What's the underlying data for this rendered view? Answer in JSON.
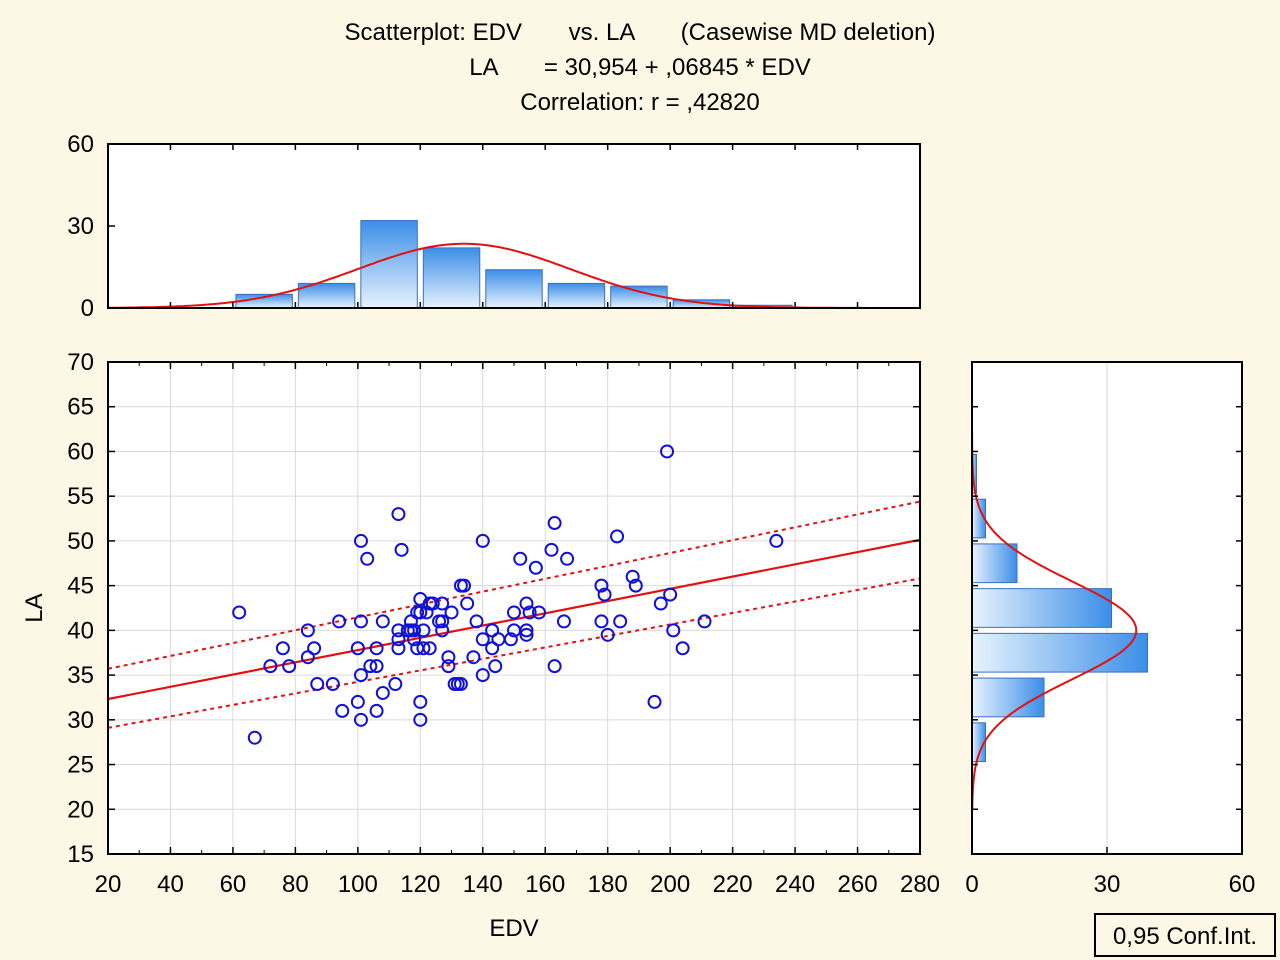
{
  "colors": {
    "background": "#fdf8e6",
    "plot_background": "#ffffff",
    "grid": "#d9d9d9",
    "points": "#1010d8",
    "fit_line": "#e31010",
    "bar_fill_light": "#e8f3fd",
    "bar_fill_dark": "#3b8ee8",
    "bar_stroke": "#3a6fc0"
  },
  "chart_data": {
    "type": "scatter",
    "title": {
      "line1": "Scatterplot: EDV       vs. LA       (Casewise MD deletion)",
      "line2": "LA       = 30,954 + ,06845 * EDV",
      "line3": "Correlation: r = ,42820"
    },
    "xlabel": "EDV",
    "ylabel": "LA",
    "xlim": [
      20,
      280
    ],
    "ylim": [
      15,
      70
    ],
    "x_ticks": [
      20,
      40,
      60,
      80,
      100,
      120,
      140,
      160,
      180,
      200,
      220,
      240,
      260,
      280
    ],
    "y_ticks": [
      15,
      20,
      25,
      30,
      35,
      40,
      45,
      50,
      55,
      60,
      65,
      70
    ],
    "grid": true,
    "regression": {
      "intercept": 30.954,
      "slope": 0.06845
    },
    "confidence_band": {
      "label": "0,95 Conf.Int.",
      "upper": [
        [
          20,
          35.7
        ],
        [
          280,
          54.4
        ]
      ],
      "lower": [
        [
          20,
          29.1
        ],
        [
          280,
          45.8
        ]
      ]
    },
    "points": [
      [
        62,
        42
      ],
      [
        67,
        28
      ],
      [
        72,
        36
      ],
      [
        76,
        38
      ],
      [
        78,
        36
      ],
      [
        84,
        37
      ],
      [
        84,
        40
      ],
      [
        86,
        38
      ],
      [
        87,
        34
      ],
      [
        92,
        34
      ],
      [
        94,
        41
      ],
      [
        95,
        31
      ],
      [
        100,
        38
      ],
      [
        100,
        32
      ],
      [
        101,
        30
      ],
      [
        101,
        35
      ],
      [
        101,
        41
      ],
      [
        101,
        50
      ],
      [
        103,
        48
      ],
      [
        104,
        36
      ],
      [
        106,
        31
      ],
      [
        106,
        36
      ],
      [
        106,
        38
      ],
      [
        108,
        33
      ],
      [
        108,
        41
      ],
      [
        112,
        34
      ],
      [
        113,
        53
      ],
      [
        113,
        40
      ],
      [
        113,
        39
      ],
      [
        113,
        38
      ],
      [
        114,
        49
      ],
      [
        116,
        40
      ],
      [
        117,
        40
      ],
      [
        117,
        41
      ],
      [
        118,
        39
      ],
      [
        118,
        40
      ],
      [
        119,
        42
      ],
      [
        119,
        38
      ],
      [
        120,
        30
      ],
      [
        120,
        32
      ],
      [
        120,
        42
      ],
      [
        120,
        43.5
      ],
      [
        121,
        40
      ],
      [
        121,
        38
      ],
      [
        122,
        42
      ],
      [
        123,
        38
      ],
      [
        123,
        43
      ],
      [
        124,
        43
      ],
      [
        126,
        41
      ],
      [
        127,
        40
      ],
      [
        127,
        41
      ],
      [
        127,
        43
      ],
      [
        129,
        36
      ],
      [
        129,
        37
      ],
      [
        130,
        42
      ],
      [
        131,
        34
      ],
      [
        132,
        34
      ],
      [
        133,
        45
      ],
      [
        133,
        34
      ],
      [
        134,
        45
      ],
      [
        135,
        43
      ],
      [
        137,
        37
      ],
      [
        138,
        41
      ],
      [
        140,
        35
      ],
      [
        140,
        39
      ],
      [
        140,
        50
      ],
      [
        143,
        40
      ],
      [
        143,
        38
      ],
      [
        144,
        36
      ],
      [
        145,
        39
      ],
      [
        149,
        39
      ],
      [
        150,
        42
      ],
      [
        150,
        40
      ],
      [
        152,
        48
      ],
      [
        154,
        43
      ],
      [
        154,
        40
      ],
      [
        154,
        39.5
      ],
      [
        155,
        42
      ],
      [
        157,
        47
      ],
      [
        158,
        42
      ],
      [
        162,
        49
      ],
      [
        163,
        36
      ],
      [
        163,
        52
      ],
      [
        166,
        41
      ],
      [
        167,
        48
      ],
      [
        178,
        41
      ],
      [
        178,
        45
      ],
      [
        179,
        44
      ],
      [
        180,
        39.5
      ],
      [
        183,
        50.5
      ],
      [
        184,
        41
      ],
      [
        188,
        46
      ],
      [
        189,
        45
      ],
      [
        195,
        32
      ],
      [
        197,
        43
      ],
      [
        199,
        60
      ],
      [
        200,
        44
      ],
      [
        201,
        40
      ],
      [
        204,
        38
      ],
      [
        211,
        41
      ],
      [
        234,
        50
      ]
    ],
    "x_histogram": {
      "ylim": [
        0,
        60
      ],
      "y_ticks": [
        0,
        30,
        60
      ],
      "bins": [
        {
          "from": 60,
          "to": 80,
          "count": 5
        },
        {
          "from": 80,
          "to": 100,
          "count": 9
        },
        {
          "from": 100,
          "to": 120,
          "count": 32
        },
        {
          "from": 120,
          "to": 140,
          "count": 22
        },
        {
          "from": 140,
          "to": 160,
          "count": 14
        },
        {
          "from": 160,
          "to": 180,
          "count": 9
        },
        {
          "from": 180,
          "to": 200,
          "count": 8
        },
        {
          "from": 200,
          "to": 220,
          "count": 3
        },
        {
          "from": 220,
          "to": 240,
          "count": 1
        }
      ],
      "normal_curve": {
        "mean": 134,
        "sd": 34,
        "peak": 23.5
      }
    },
    "y_histogram": {
      "xlim": [
        0,
        60
      ],
      "x_ticks": [
        0,
        30,
        60
      ],
      "bins": [
        {
          "from": 25,
          "to": 30,
          "count": 3
        },
        {
          "from": 30,
          "to": 35,
          "count": 16
        },
        {
          "from": 35,
          "to": 40,
          "count": 39
        },
        {
          "from": 40,
          "to": 45,
          "count": 31
        },
        {
          "from": 45,
          "to": 50,
          "count": 10
        },
        {
          "from": 50,
          "to": 55,
          "count": 3
        },
        {
          "from": 55,
          "to": 60,
          "count": 1
        }
      ],
      "normal_curve": {
        "mean": 40,
        "sd": 5.5,
        "peak": 36.5
      }
    }
  }
}
